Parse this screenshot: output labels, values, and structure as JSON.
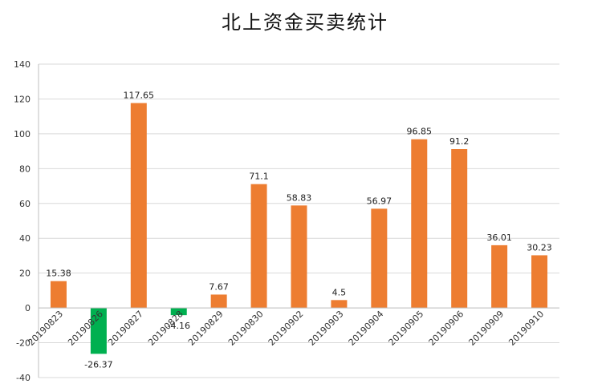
{
  "chart_data": {
    "type": "bar",
    "title": "北上资金买卖统计",
    "xlabel": "",
    "ylabel": "",
    "categories": [
      "20190823",
      "20190826",
      "20190827",
      "20190828",
      "20190829",
      "20190830",
      "20190902",
      "20190903",
      "20190904",
      "20190905",
      "20190906",
      "20190909",
      "20190910"
    ],
    "values": [
      15.38,
      -26.37,
      117.65,
      -4.16,
      7.67,
      71.1,
      58.83,
      4.5,
      56.97,
      96.85,
      91.2,
      36.01,
      30.23
    ],
    "data_labels": [
      "15.38",
      "-26.37",
      "117.65",
      "-4.16",
      "7.67",
      "71.1",
      "58.83",
      "4.5",
      "56.97",
      "96.85",
      "91.2",
      "36.01",
      "30.23"
    ],
    "ylim": [
      -40,
      140
    ],
    "yticks": [
      -40,
      -20,
      0,
      20,
      40,
      60,
      80,
      100,
      120,
      140
    ],
    "ytick_labels": [
      "-40",
      "-20",
      "0",
      "20",
      "40",
      "60",
      "80",
      "100",
      "120",
      "140"
    ],
    "grid": true,
    "legend": "none",
    "colors": {
      "positive": "#ED7D31",
      "negative": "#00B050",
      "grid": "#D9D9D9",
      "axis": "#BFBFBF"
    }
  }
}
